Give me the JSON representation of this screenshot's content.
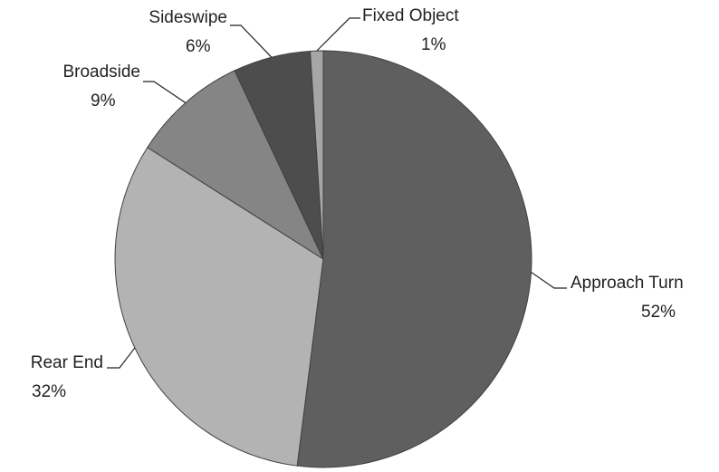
{
  "chart_data": {
    "type": "pie",
    "categories": [
      "Approach Turn",
      "Rear End",
      "Broadside",
      "Sideswipe",
      "Fixed Object"
    ],
    "values": [
      52,
      32,
      9,
      6,
      1
    ],
    "value_labels": [
      "52%",
      "32%",
      "9%",
      "6%",
      "1%"
    ],
    "colors": [
      "#5f5f5f",
      "#b3b3b3",
      "#858585",
      "#4d4d4d",
      "#a6a6a6"
    ]
  }
}
